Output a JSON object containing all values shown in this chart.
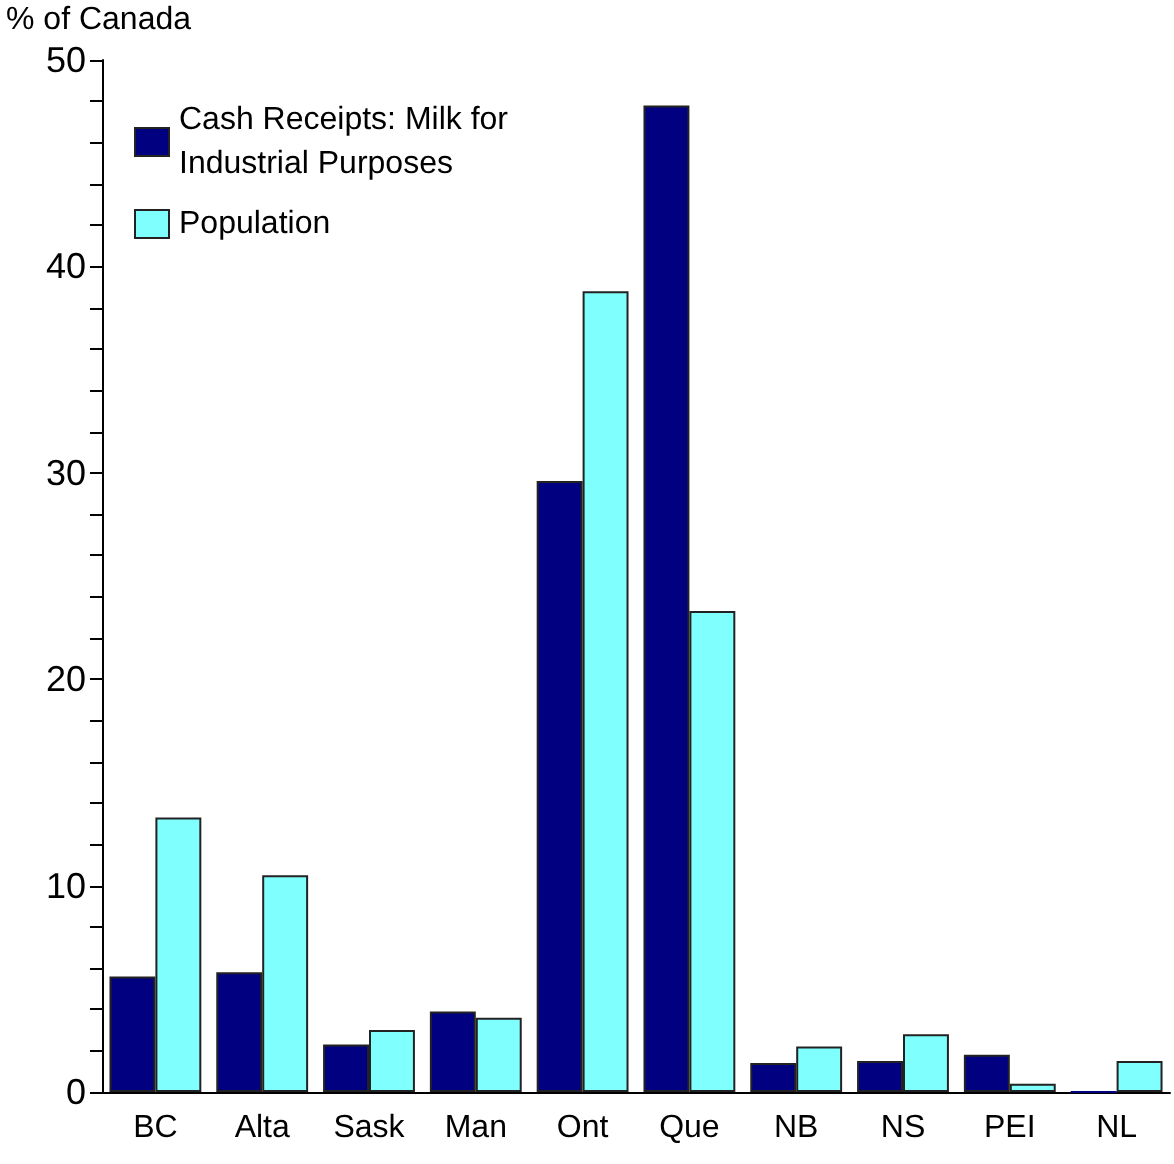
{
  "chart_data": {
    "type": "bar",
    "ylabel": "% of Canada",
    "categories": [
      "BC",
      "Alta",
      "Sask",
      "Man",
      "Ont",
      "Que",
      "NB",
      "NS",
      "PEI",
      "NL"
    ],
    "series": [
      {
        "name": "Cash Receipts: Milk for Industrial Purposes",
        "color": "#000080",
        "values": [
          5.6,
          5.8,
          2.3,
          3.9,
          29.6,
          47.8,
          1.4,
          1.5,
          1.8,
          0
        ]
      },
      {
        "name": "Population",
        "color": "#80ffff",
        "values": [
          13.3,
          10.5,
          3.0,
          3.6,
          38.8,
          23.3,
          2.2,
          2.8,
          0.4,
          1.5
        ]
      }
    ],
    "ylim": [
      0,
      50
    ],
    "yticks": [
      0,
      {
        "value": 2,
        "label": null
      },
      {
        "value": 4,
        "label": null
      },
      {
        "value": 6,
        "label": null
      },
      {
        "value": 8,
        "label": null
      },
      10,
      {
        "value": 12,
        "label": null
      },
      {
        "value": 14,
        "label": null
      },
      {
        "value": 16,
        "label": null
      },
      {
        "value": 18,
        "label": null
      },
      20,
      {
        "value": 22,
        "label": null
      },
      {
        "value": 24,
        "label": null
      },
      {
        "value": 26,
        "label": null
      },
      {
        "value": 28,
        "label": null
      },
      30,
      {
        "value": 32,
        "label": null
      },
      {
        "value": 34,
        "label": null
      },
      {
        "value": 36,
        "label": null
      },
      {
        "value": 38,
        "label": null
      },
      40,
      {
        "value": 42,
        "label": null
      },
      {
        "value": 44,
        "label": null
      },
      {
        "value": 46,
        "label": null
      },
      {
        "value": 48,
        "label": null
      },
      50
    ],
    "grid": false,
    "legend": "top left"
  }
}
